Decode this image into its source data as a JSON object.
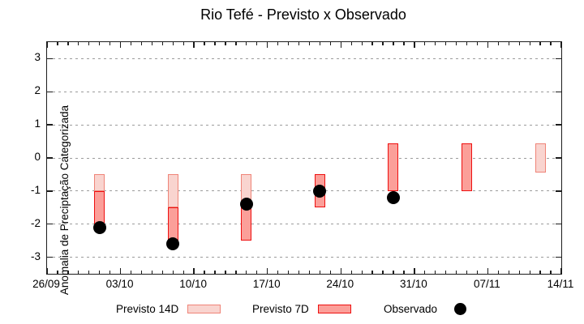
{
  "title": "Rio Tefé - Previsto x Observado",
  "colors": {
    "previsto_14d_fill": "#f9d4cf",
    "previsto_14d_border": "#ef8478",
    "previsto_7d_fill": "#fb9f99",
    "previsto_7d_border": "#ee1010",
    "observado": "#000000",
    "grid": "#9c9c9c",
    "frame": "#1c1c1c"
  },
  "legend": {
    "items": [
      {
        "label": "Previsto 14D",
        "swatch": "range-light"
      },
      {
        "label": "Previsto 7D",
        "swatch": "range-dark"
      },
      {
        "label": "Observado",
        "swatch": "dot"
      }
    ]
  },
  "chart_data": {
    "type": "bar",
    "subtype": "range-bars-with-scatter",
    "title": "Rio Tefé - Previsto x Observado",
    "xlabel": "",
    "ylabel": "Anomalia de Preciptação Categorizada",
    "ylim": [
      -3.5,
      3.5
    ],
    "yticks": [
      3,
      2,
      1,
      0,
      -1,
      -2,
      -3
    ],
    "grid": "dashed-horizontal",
    "legend_position": "bottom",
    "x_axis": {
      "days_total": 49,
      "major_tick_every_days": 7,
      "minor_tick_every_days": 1,
      "tick_labels": [
        "26/09",
        "03/10",
        "10/10",
        "17/10",
        "24/10",
        "31/10",
        "07/11",
        "14/11"
      ]
    },
    "series": [
      {
        "name": "Previsto 14D",
        "kind": "range-bar",
        "fill": "#f9d4cf",
        "border": "#ef8478",
        "points": [
          {
            "date": "01/10",
            "day": 5,
            "from": -1.0,
            "to": -0.5
          },
          {
            "date": "08/10",
            "day": 12,
            "from": -1.5,
            "to": -0.5
          },
          {
            "date": "15/10",
            "day": 19,
            "from": -1.5,
            "to": -0.5
          },
          {
            "date": "12/11",
            "day": 47,
            "from": -0.45,
            "to": 0.45
          }
        ]
      },
      {
        "name": "Previsto 7D",
        "kind": "range-bar",
        "fill": "#fb9f99",
        "border": "#ee1010",
        "points": [
          {
            "date": "01/10",
            "day": 5,
            "from": -2.0,
            "to": -1.0
          },
          {
            "date": "08/10",
            "day": 12,
            "from": -2.5,
            "to": -1.5
          },
          {
            "date": "15/10",
            "day": 19,
            "from": -2.5,
            "to": -1.5
          },
          {
            "date": "22/10",
            "day": 26,
            "from": -1.5,
            "to": -0.5
          },
          {
            "date": "29/10",
            "day": 33,
            "from": -1.0,
            "to": 0.45
          },
          {
            "date": "05/11",
            "day": 40,
            "from": -1.0,
            "to": 0.45
          }
        ]
      },
      {
        "name": "Observado",
        "kind": "scatter",
        "fill": "#000000",
        "points": [
          {
            "date": "01/10",
            "day": 5,
            "value": -2.1
          },
          {
            "date": "08/10",
            "day": 12,
            "value": -2.6
          },
          {
            "date": "15/10",
            "day": 19,
            "value": -1.4
          },
          {
            "date": "22/10",
            "day": 26,
            "value": -1.0
          },
          {
            "date": "29/10",
            "day": 33,
            "value": -1.2
          }
        ]
      }
    ]
  }
}
